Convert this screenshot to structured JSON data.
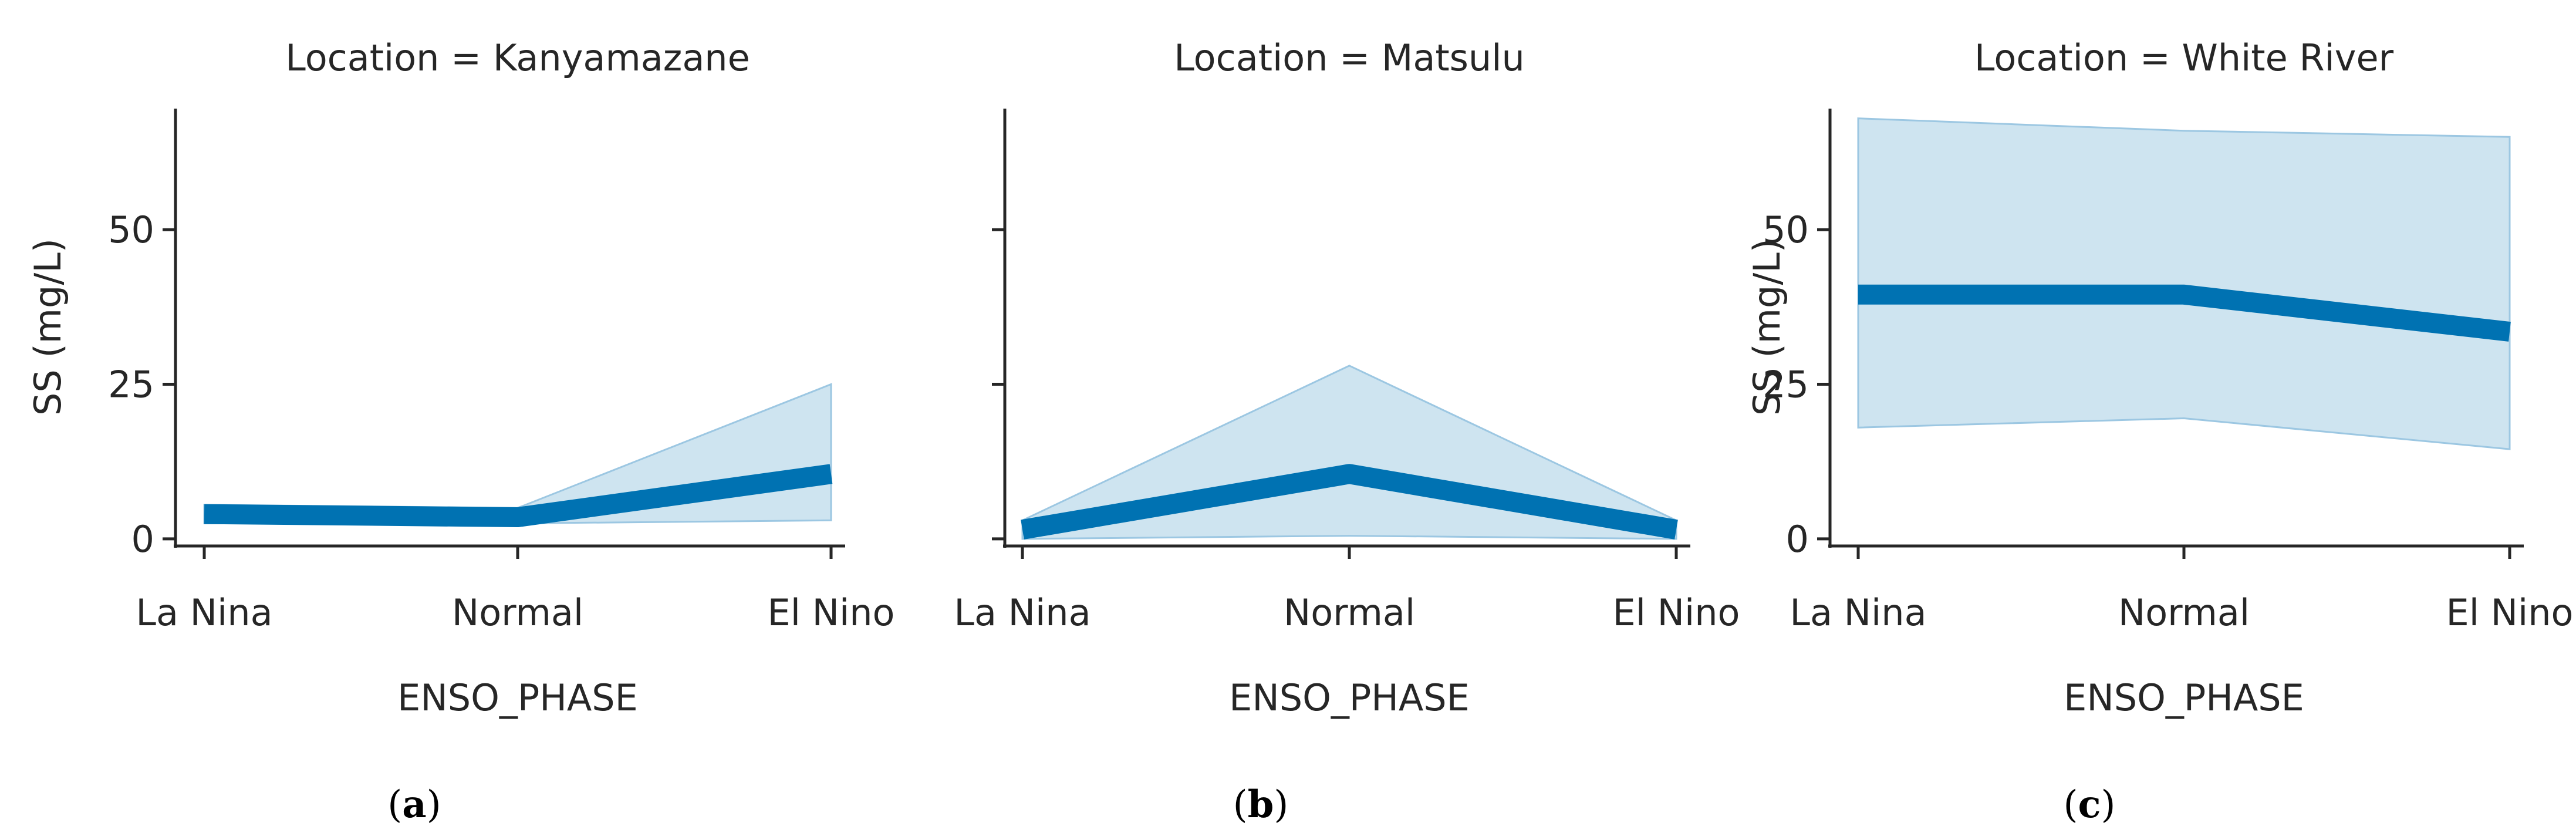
{
  "colors": {
    "line": "#0072b2",
    "band_fill": "#a6cde4",
    "band_edge": "#9cc7e2"
  },
  "chart_data": [
    {
      "type": "line",
      "title": "Location = Kanyamazane",
      "panel": "a",
      "xlabel": "ENSO_PHASE",
      "ylabel": "SS (mg/L)",
      "categories": [
        "La Nina",
        "Normal",
        "El Nino"
      ],
      "values": [
        4,
        3.5,
        10.5
      ],
      "ci_low": [
        2.5,
        2.5,
        3
      ],
      "ci_high": [
        5.5,
        5,
        25
      ],
      "yticks": [
        0,
        25,
        50
      ],
      "ylim": [
        -4,
        71
      ]
    },
    {
      "type": "line",
      "title": "Location = Matsulu",
      "panel": "b",
      "xlabel": "ENSO_PHASE",
      "ylabel": "",
      "categories": [
        "La Nina",
        "Normal",
        "El Nino"
      ],
      "values": [
        1.5,
        10.5,
        1.5
      ],
      "ci_low": [
        0,
        0.5,
        0
      ],
      "ci_high": [
        3,
        28,
        3
      ],
      "yticks": [
        0,
        25,
        50
      ],
      "ylim": [
        -4,
        71
      ]
    },
    {
      "type": "line",
      "title": "Location = White River",
      "panel": "c",
      "xlabel": "ENSO_PHASE",
      "ylabel": "SS (mg/L)",
      "categories": [
        "La Nina",
        "Normal",
        "El Nino"
      ],
      "values": [
        39.5,
        39.5,
        33.5
      ],
      "ci_low": [
        18,
        19.5,
        14.5
      ],
      "ci_high": [
        68,
        66,
        65
      ],
      "yticks": [
        0,
        25,
        50
      ],
      "ylim": [
        -4,
        71
      ]
    }
  ]
}
